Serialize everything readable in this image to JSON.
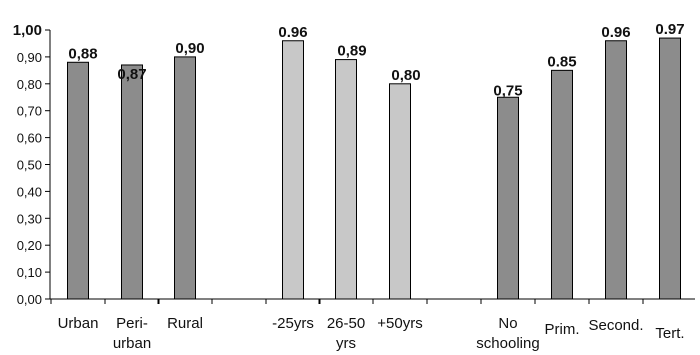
{
  "chart_data": {
    "type": "bar",
    "title": "",
    "xlabel": "",
    "ylabel": "",
    "ylim": [
      0,
      1
    ],
    "yticks": [
      "0,00",
      "0,10",
      "0,20",
      "0,30",
      "0,40",
      "0,50",
      "0,60",
      "0,70",
      "0,80",
      "0,90",
      "1,00"
    ],
    "grid": false,
    "legend": "none",
    "bars": [
      {
        "category": [
          "Urban"
        ],
        "value": 0.88,
        "label": "0,88",
        "color": "#8c8c8c"
      },
      {
        "category": [
          "Peri-",
          "urban"
        ],
        "value": 0.87,
        "label": "0,87",
        "color": "#8c8c8c"
      },
      {
        "category": [
          "Rural"
        ],
        "value": 0.9,
        "label": "0,90",
        "color": "#8c8c8c"
      },
      {
        "category": [
          "-25yrs"
        ],
        "value": 0.96,
        "label": "0.96",
        "color": "#c8c8c8"
      },
      {
        "category": [
          "26-50",
          "yrs"
        ],
        "value": 0.89,
        "label": "0,89",
        "color": "#c8c8c8"
      },
      {
        "category": [
          "+50yrs"
        ],
        "value": 0.8,
        "label": "0,80",
        "color": "#c8c8c8"
      },
      {
        "category": [
          "No",
          "schooling"
        ],
        "value": 0.75,
        "label": "0,75",
        "color": "#8c8c8c"
      },
      {
        "category": [
          "Prim."
        ],
        "value": 0.85,
        "label": "0.85",
        "color": "#8c8c8c"
      },
      {
        "category": [
          "Second."
        ],
        "value": 0.96,
        "label": "0.96",
        "color": "#8c8c8c"
      },
      {
        "category": [
          "Tert."
        ],
        "value": 0.97,
        "label": "0.97",
        "color": "#8c8c8c"
      }
    ]
  }
}
